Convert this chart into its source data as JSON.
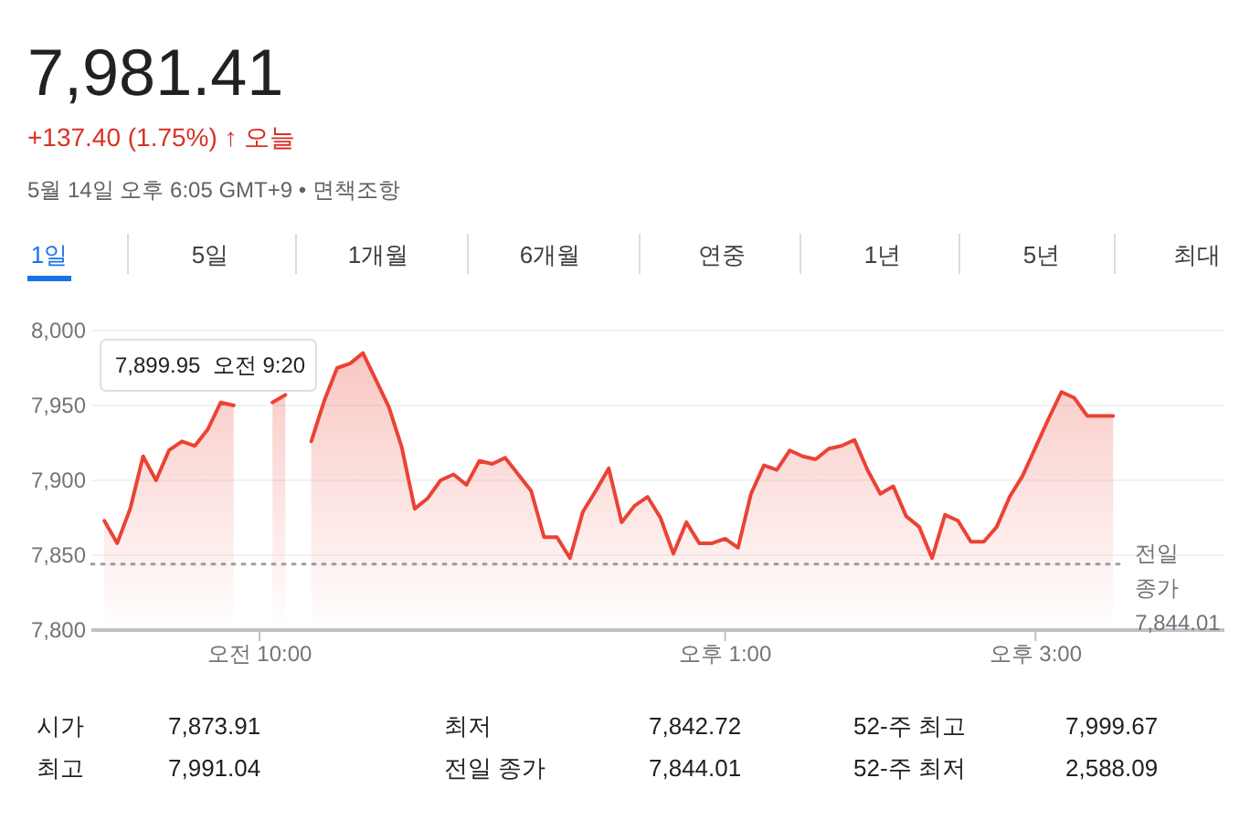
{
  "chart_data": {
    "type": "area",
    "title": "7,981.41",
    "subtitle": "+137.40 (1.75%) ↑ 오늘",
    "annotations": [
      "5월 14일 오후 6:05 GMT+9 • 면책조항",
      "1일",
      "5일",
      "1개월",
      "6개월",
      "연중",
      "1년",
      "5년",
      "최대",
      "시가",
      "7,873.91",
      "최저",
      "7,842.72",
      "52-주 최고",
      "7,999.67",
      "최고",
      "7,991.04",
      "전일 종가",
      "7,844.01",
      "52-주 최저",
      "2,588.09",
      "7,899.95  오전 9:20"
    ],
    "categories": [
      null,
      null,
      null,
      null,
      null,
      null,
      null,
      null,
      null,
      null,
      null,
      null,
      "오전 10:00",
      null,
      null,
      null,
      null,
      null,
      null,
      null,
      null,
      null,
      null,
      null,
      null,
      null,
      null,
      null,
      null,
      null,
      null,
      null,
      null,
      null,
      null,
      null,
      null,
      null,
      null,
      null,
      null,
      null,
      null,
      null,
      null,
      null,
      null,
      null,
      "오후 1:00",
      null,
      null,
      null,
      null,
      null,
      null,
      null,
      null,
      null,
      null,
      null,
      null,
      null,
      null,
      null,
      null,
      null,
      null,
      null,
      null,
      null,
      null,
      null,
      "오후 3:00",
      null,
      null,
      null,
      null,
      null,
      null
    ],
    "series": [
      {
        "color": "#ea4335",
        "values": [
          7873,
          7858,
          7881,
          7916,
          7900,
          7920,
          7926,
          7923,
          7934,
          7952,
          7950,
          null,
          null,
          7952,
          7957,
          null,
          7926,
          7953,
          7975,
          7978,
          7985,
          7967,
          7949,
          7922,
          7881,
          7888,
          7900,
          7904,
          7897,
          7913,
          7911,
          7915,
          7904,
          7893,
          7862,
          7862,
          7848,
          7879,
          7893,
          7908,
          7872,
          7883,
          7889,
          7875,
          7851,
          7872,
          7858,
          7858,
          7861,
          7855,
          7891,
          7910,
          7907,
          7920,
          7916,
          7914,
          7921,
          7923,
          7927,
          7907,
          7891,
          7896,
          7876,
          7869,
          7848,
          7877,
          7873,
          7859,
          7859,
          7869,
          7889,
          7903,
          7922,
          7941,
          7959,
          7955,
          7943,
          7943,
          7943
        ]
      }
    ],
    "ylim": [
      7800,
      8000
    ],
    "yticks": [
      {
        "value": 7800,
        "label": "7,800"
      },
      {
        "value": 7850,
        "label": "7,850"
      },
      {
        "value": 7900,
        "label": "7,900"
      },
      {
        "value": 7950,
        "label": "7,950"
      },
      {
        "value": 8000,
        "label": "8,000"
      }
    ],
    "grid": "y",
    "ref_lines": [
      {
        "axis": "y",
        "value": 7844.01,
        "label": "전일 종가 7,844.01",
        "color": "#9aa0a6",
        "line_style": "dotted"
      }
    ]
  }
}
